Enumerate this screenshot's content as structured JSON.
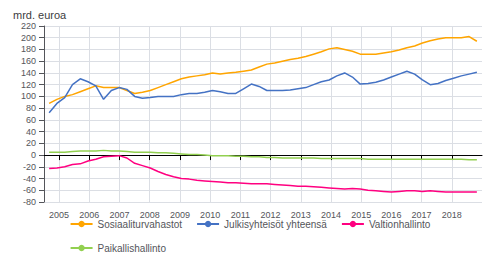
{
  "chart_data": {
    "type": "line",
    "title": "mrd. euroa",
    "x": [
      2004.67,
      2004.9275,
      2005.1849,
      2005.4424,
      2005.6998,
      2005.9573,
      2006.2147,
      2006.4722,
      2006.7296,
      2006.9871,
      2007.2445,
      2007.502,
      2007.7595,
      2008.0169,
      2008.2744,
      2008.5318,
      2008.7893,
      2009.0467,
      2009.3042,
      2009.5616,
      2009.8191,
      2010.0765,
      2010.334,
      2010.5915,
      2010.8489,
      2011.1064,
      2011.3638,
      2011.6213,
      2011.8787,
      2012.1362,
      2012.3936,
      2012.6511,
      2012.9085,
      2013.166,
      2013.4235,
      2013.6809,
      2013.9384,
      2014.1958,
      2014.4533,
      2014.7107,
      2014.9682,
      2015.2256,
      2015.4831,
      2015.7405,
      2015.998,
      2016.2555,
      2016.5129,
      2016.7704,
      2017.0278,
      2017.2853,
      2017.5427,
      2017.8002,
      2018.0576,
      2018.3151,
      2018.5725,
      2018.83
    ],
    "series": [
      {
        "name": "Sosiaaliturvahastot",
        "color": "#FFA500",
        "values": [
          88,
          95,
          100,
          103,
          108,
          113,
          118,
          115,
          115,
          115,
          110,
          105,
          107,
          110,
          115,
          120,
          125,
          130,
          133,
          135,
          137,
          140,
          138,
          140,
          141,
          143,
          145,
          150,
          155,
          157,
          160,
          163,
          165,
          168,
          172,
          176,
          181,
          183,
          180,
          177,
          172,
          172,
          172,
          174,
          176,
          179,
          183,
          186,
          191,
          195,
          198,
          200,
          200,
          200,
          202,
          194
        ]
      },
      {
        "name": "Julkisyhteisöt yhteensä",
        "color": "#4472C4",
        "values": [
          72,
          88,
          98,
          120,
          130,
          125,
          118,
          95,
          110,
          115,
          112,
          100,
          97,
          98,
          100,
          100,
          100,
          103,
          105,
          105,
          107,
          110,
          108,
          105,
          105,
          113,
          121,
          117,
          110,
          110,
          110,
          111,
          113,
          115,
          120,
          125,
          128,
          135,
          140,
          133,
          121,
          122,
          124,
          128,
          133,
          138,
          143,
          138,
          128,
          120,
          122,
          127,
          131,
          135,
          138,
          141
        ]
      },
      {
        "name": "Valtionhallinto",
        "color": "#FF0080",
        "values": [
          -23,
          -22,
          -20,
          -16,
          -15,
          -10,
          -7,
          -3,
          -2,
          -1,
          -5,
          -14,
          -18,
          -22,
          -28,
          -33,
          -37,
          -40,
          -41,
          -43,
          -44,
          -45,
          -46,
          -47,
          -47,
          -48,
          -49,
          -49,
          -49,
          -50,
          -51,
          -52,
          -53,
          -53,
          -54,
          -55,
          -56,
          -57,
          -58,
          -57,
          -58,
          -60,
          -61,
          -62,
          -63,
          -62,
          -61,
          -61,
          -62,
          -61,
          -62,
          -63,
          -63,
          -63,
          -63,
          -63
        ]
      },
      {
        "name": "Paikallishallinto",
        "color": "#92D050",
        "values": [
          5,
          5,
          5,
          6,
          7,
          7,
          7,
          8,
          7,
          7,
          6,
          5,
          5,
          5,
          4,
          4,
          3,
          2,
          1,
          1,
          0,
          -1,
          -1,
          -1,
          -2,
          -2,
          -3,
          -3,
          -4,
          -4,
          -5,
          -5,
          -5,
          -5,
          -5,
          -6,
          -6,
          -6,
          -6,
          -6,
          -6,
          -7,
          -7,
          -7,
          -7,
          -7,
          -7,
          -7,
          -7,
          -7,
          -7,
          -7,
          -7,
          -7,
          -8,
          -8
        ]
      }
    ],
    "xlim": [
      2004.5,
      2019.0
    ],
    "xticks": [
      2005,
      2006,
      2007,
      2008,
      2009,
      2010,
      2011,
      2012,
      2013,
      2014,
      2015,
      2016,
      2017,
      2018
    ],
    "ylim": [
      -80,
      220
    ],
    "yticks": [
      -80,
      -60,
      -40,
      -20,
      0,
      20,
      40,
      60,
      80,
      100,
      120,
      140,
      160,
      180,
      200,
      220
    ],
    "grid": true,
    "legend": "bottom"
  }
}
